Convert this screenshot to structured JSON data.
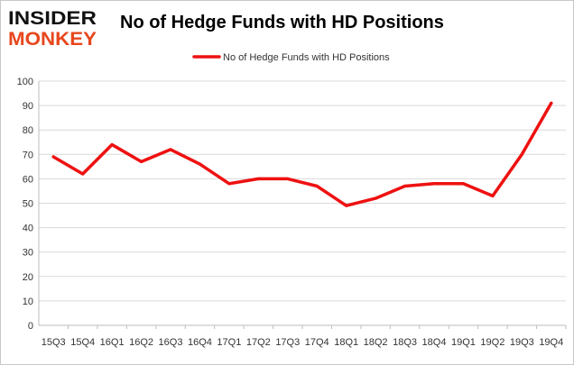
{
  "brand": {
    "line1": "INSIDER",
    "line2": "MONKEY",
    "color_dark": "#111111",
    "color_accent": "#e8461c"
  },
  "chart_data": {
    "type": "line",
    "title": "No of Hedge Funds with HD Positions",
    "xlabel": "",
    "ylabel": "",
    "categories": [
      "15Q3",
      "15Q4",
      "16Q1",
      "16Q2",
      "16Q3",
      "16Q4",
      "17Q1",
      "17Q2",
      "17Q3",
      "17Q4",
      "18Q1",
      "18Q2",
      "18Q3",
      "18Q4",
      "19Q1",
      "19Q2",
      "19Q3",
      "19Q4"
    ],
    "series": [
      {
        "name": "No of Hedge Funds with HD Positions",
        "color": "#ee1111",
        "values": [
          69,
          62,
          74,
          67,
          72,
          66,
          58,
          60,
          60,
          57,
          49,
          52,
          57,
          58,
          58,
          53,
          70,
          91
        ]
      }
    ],
    "ylim": [
      0,
      100
    ],
    "yticks": [
      0,
      10,
      20,
      30,
      40,
      50,
      60,
      70,
      80,
      90,
      100
    ],
    "grid": true,
    "legend_position": "top-center"
  }
}
